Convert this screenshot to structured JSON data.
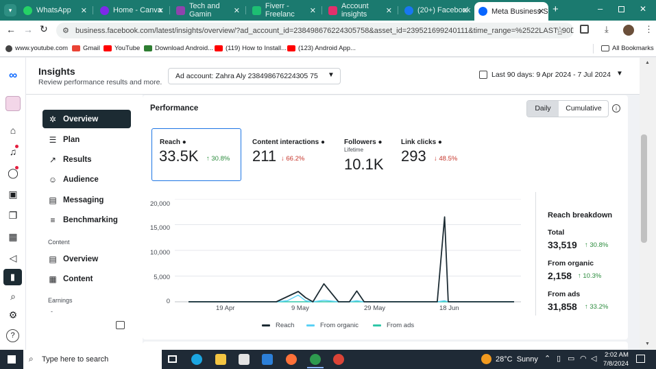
{
  "browser": {
    "tabs": [
      {
        "label": "WhatsApp",
        "color": "#25d366"
      },
      {
        "label": "Home - Canva",
        "color": "#7d2ae8"
      },
      {
        "label": "Tech and Gamin",
        "color": "#8e44ad"
      },
      {
        "label": "Fiverr - Freelanc",
        "color": "#1dbf73"
      },
      {
        "label": "Account insights",
        "color": "#e1306c"
      },
      {
        "label": "(20+) Facebook",
        "color": "#1877f2"
      },
      {
        "label": "Meta Business S",
        "color": "#0866ff"
      }
    ],
    "new_tab": "+",
    "url": "business.facebook.com/latest/insights/overview/?ad_account_id=238498676224305758&asset_id=239521699240111&time_range=%2522LAST_90D%2522",
    "bookmarks": [
      {
        "label": "www.youtube.com",
        "color": "#ff0000"
      },
      {
        "label": "Gmail",
        "color": "#ea4335"
      },
      {
        "label": "YouTube",
        "color": "#ff0000"
      },
      {
        "label": "Download Android...",
        "color": "#2e7d32"
      },
      {
        "label": "(119) How to Install...",
        "color": "#ff0000"
      },
      {
        "label": "(123) Android App...",
        "color": "#ff0000"
      }
    ],
    "all_bookmarks": "All Bookmarks"
  },
  "header": {
    "title": "Insights",
    "subtitle": "Review performance results and more.",
    "ad_account": "Ad account: Zahra Aly 238498676224305 75",
    "date_range": "Last 90 days: 9 Apr 2024 - 7 Jul 2024"
  },
  "nav": {
    "items": [
      {
        "label": "Overview",
        "icon": "overview-icon"
      },
      {
        "label": "Plan",
        "icon": "plan-icon"
      },
      {
        "label": "Results",
        "icon": "results-icon"
      },
      {
        "label": "Audience",
        "icon": "audience-icon"
      },
      {
        "label": "Messaging",
        "icon": "messaging-icon"
      },
      {
        "label": "Benchmarking",
        "icon": "benchmarking-icon"
      }
    ],
    "content_group": "Content",
    "content_items": [
      {
        "label": "Overview",
        "icon": "overview-icon"
      },
      {
        "label": "Content",
        "icon": "table-icon"
      }
    ],
    "earnings_group": "Earnings",
    "earnings_item": "-"
  },
  "performance": {
    "title": "Performance",
    "toggle_daily": "Daily",
    "toggle_cumulative": "Cumulative",
    "metrics": [
      {
        "label": "Reach",
        "value": "33.5K",
        "change": "30.8%",
        "dir": "up"
      },
      {
        "label": "Content interactions",
        "value": "211",
        "change": "66.2%",
        "dir": "down"
      },
      {
        "label": "Followers",
        "sub": "Lifetime",
        "value": "10.1K",
        "change": "",
        "dir": ""
      },
      {
        "label": "Link clicks",
        "value": "293",
        "change": "48.5%",
        "dir": "down"
      }
    ]
  },
  "breakdown": {
    "title": "Reach breakdown",
    "rows": [
      {
        "label": "Total",
        "value": "33,519",
        "change": "30.8%"
      },
      {
        "label": "From organic",
        "value": "2,158",
        "change": "10.3%"
      },
      {
        "label": "From ads",
        "value": "31,858",
        "change": "33.2%"
      }
    ]
  },
  "chart_data": {
    "type": "line",
    "x": [
      "9 Apr",
      "16 Apr",
      "19 Apr",
      "26 Apr",
      "3 May",
      "6 May",
      "9 May",
      "11 May",
      "13 May",
      "16 May",
      "20 May",
      "23 May",
      "25 May",
      "27 May",
      "29 May",
      "5 Jun",
      "10 Jun",
      "14 Jun",
      "16 Jun",
      "18 Jun",
      "19 Jun",
      "20 Jun",
      "22 Jun",
      "25 Jun",
      "30 Jun",
      "7 Jul"
    ],
    "series": [
      {
        "name": "Reach",
        "color": "#1c2b33",
        "values": [
          0,
          0,
          0,
          0,
          0,
          1000,
          2000,
          800,
          0,
          3500,
          0,
          0,
          2100,
          0,
          0,
          0,
          0,
          0,
          0,
          16500,
          0,
          0,
          0,
          0,
          0,
          0
        ]
      },
      {
        "name": "From organic",
        "color": "#5ad1f5",
        "values": [
          0,
          0,
          0,
          0,
          0,
          200,
          1300,
          200,
          0,
          300,
          0,
          0,
          200,
          0,
          0,
          0,
          0,
          0,
          0,
          200,
          0,
          0,
          0,
          0,
          0,
          0
        ]
      },
      {
        "name": "From ads",
        "color": "#2fc7a8",
        "values": [
          0,
          0,
          0,
          0,
          0,
          0,
          0,
          0,
          0,
          0,
          0,
          0,
          0,
          0,
          0,
          0,
          0,
          0,
          0,
          0,
          0,
          0,
          0,
          0,
          0,
          0
        ]
      }
    ],
    "y_ticks": [
      "20,000",
      "15,000",
      "10,000",
      "5,000",
      "0"
    ],
    "x_ticks": [
      "19 Apr",
      "9 May",
      "29 May",
      "18 Jun"
    ],
    "ylim": [
      0,
      20000
    ]
  },
  "taskbar": {
    "search": "Type here to search",
    "weather": "28°C  Sunny",
    "time": "2:02 AM",
    "date": "7/8/2024"
  }
}
